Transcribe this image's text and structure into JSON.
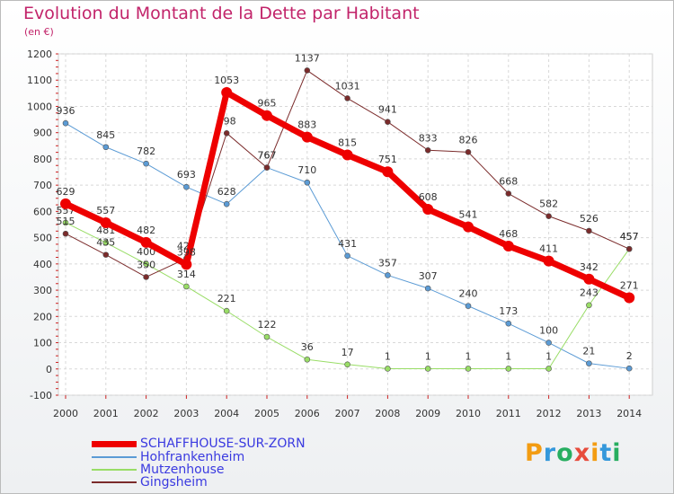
{
  "title": "Evolution du Montant de la Dette par Habitant",
  "unit": "(en €)",
  "logo": {
    "text": "Proxiti",
    "colors": [
      "#f39c12",
      "#3498db",
      "#27ae60",
      "#e74c3c",
      "#f39c12",
      "#3498db",
      "#27ae60"
    ]
  },
  "chart_data": {
    "type": "line",
    "x": [
      "2000",
      "2001",
      "2002",
      "2003",
      "2004",
      "2005",
      "2006",
      "2007",
      "2008",
      "2009",
      "2010",
      "2011",
      "2012",
      "2013",
      "2014"
    ],
    "ylim": [
      -100,
      1200
    ],
    "yticks": [
      "-100",
      "0",
      "100",
      "200",
      "300",
      "400",
      "500",
      "600",
      "700",
      "800",
      "900",
      "1000",
      "1100",
      "1200"
    ],
    "grid": true,
    "legend_position": "bottom-left",
    "series": [
      {
        "name": "Hohfrankenheim",
        "color": "#5b9bd5",
        "width": 1,
        "values": [
          936,
          845,
          782,
          693,
          628,
          767,
          710,
          431,
          357,
          307,
          240,
          173,
          100,
          21,
          2
        ],
        "labels": [
          "936",
          "845",
          "782",
          "693",
          "628",
          "767",
          "710",
          "431",
          "357",
          "307",
          "240",
          "173",
          "100",
          "21",
          "2"
        ]
      },
      {
        "name": "Mutzenhouse",
        "color": "#99dd66",
        "width": 1,
        "values": [
          557,
          481,
          400,
          314,
          221,
          122,
          36,
          17,
          1,
          1,
          1,
          1,
          1,
          243,
          457
        ],
        "labels": [
          "557",
          "481",
          "400",
          "314",
          "221",
          "122",
          "36",
          "17",
          "1",
          "1",
          "1",
          "1",
          "1",
          "243",
          "457"
        ]
      },
      {
        "name": "Gingsheim",
        "color": "#7b2b2b",
        "width": 1,
        "values": [
          515,
          435,
          350,
          421,
          898,
          767,
          1137,
          1031,
          941,
          833,
          826,
          668,
          582,
          526,
          457
        ],
        "labels": [
          "515",
          "435",
          "350",
          "421",
          "898",
          "767",
          "1137",
          "1031",
          "941",
          "833",
          "826",
          "668",
          "582",
          "526",
          "457"
        ]
      },
      {
        "name": "SCHAFFHOUSE-SUR-ZORN",
        "color": "#ee0000",
        "width": 7,
        "values": [
          629,
          557,
          482,
          398,
          1053,
          965,
          883,
          815,
          751,
          608,
          541,
          468,
          411,
          342,
          271
        ],
        "labels": [
          "629",
          "557",
          "482",
          "398",
          "1053",
          "965",
          "883",
          "815",
          "751",
          "608",
          "541",
          "468",
          "411",
          "342",
          "271"
        ]
      }
    ],
    "legend": [
      {
        "name": "SCHAFFHOUSE-SUR-ZORN",
        "color": "#ee0000",
        "swatch": 7
      },
      {
        "name": "Hohfrankenheim",
        "color": "#5b9bd5",
        "swatch": 2
      },
      {
        "name": "Mutzenhouse",
        "color": "#99dd66",
        "swatch": 2
      },
      {
        "name": "Gingsheim",
        "color": "#7b2b2b",
        "swatch": 2
      }
    ]
  }
}
